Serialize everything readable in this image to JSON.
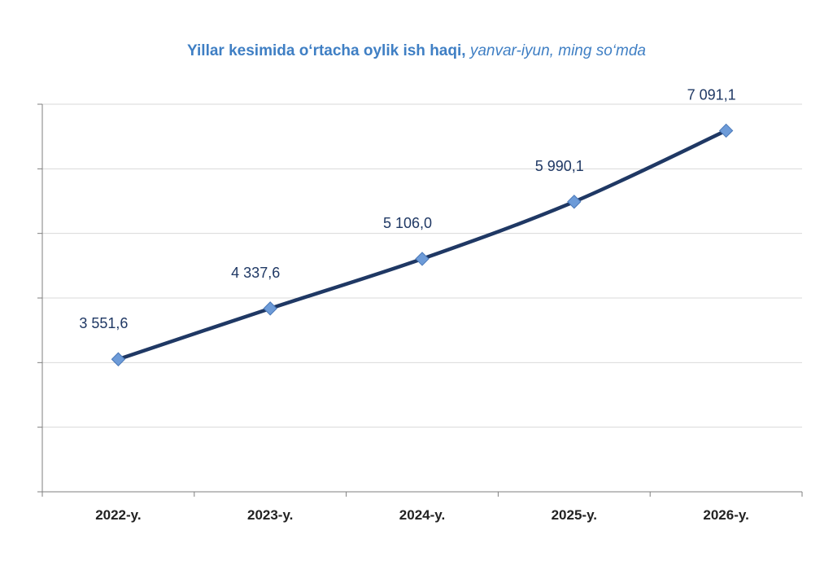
{
  "chart_data": {
    "type": "line",
    "title": "Yillar kesimida o‘rtacha oylik ish haqi,",
    "subtitle": "yanvar-iyun, ming so‘mda",
    "categories": [
      "2022-y.",
      "2023-y.",
      "2024-y.",
      "2025-y.",
      "2026-y."
    ],
    "values": [
      3551.6,
      4337.6,
      5106.0,
      5990.1,
      7091.1
    ],
    "data_labels": [
      "3 551,6",
      "4 337,6",
      "5 106,0",
      "5 990,1",
      "7 091,1"
    ],
    "ylim": [
      1500,
      7500
    ],
    "grid": true,
    "legend": "none",
    "colors": {
      "line": "#1f3864",
      "marker": "#6d9bd8",
      "title": "#3f7fc4",
      "grid": "#d9d9d9",
      "axis": "#7f7f7f"
    }
  }
}
